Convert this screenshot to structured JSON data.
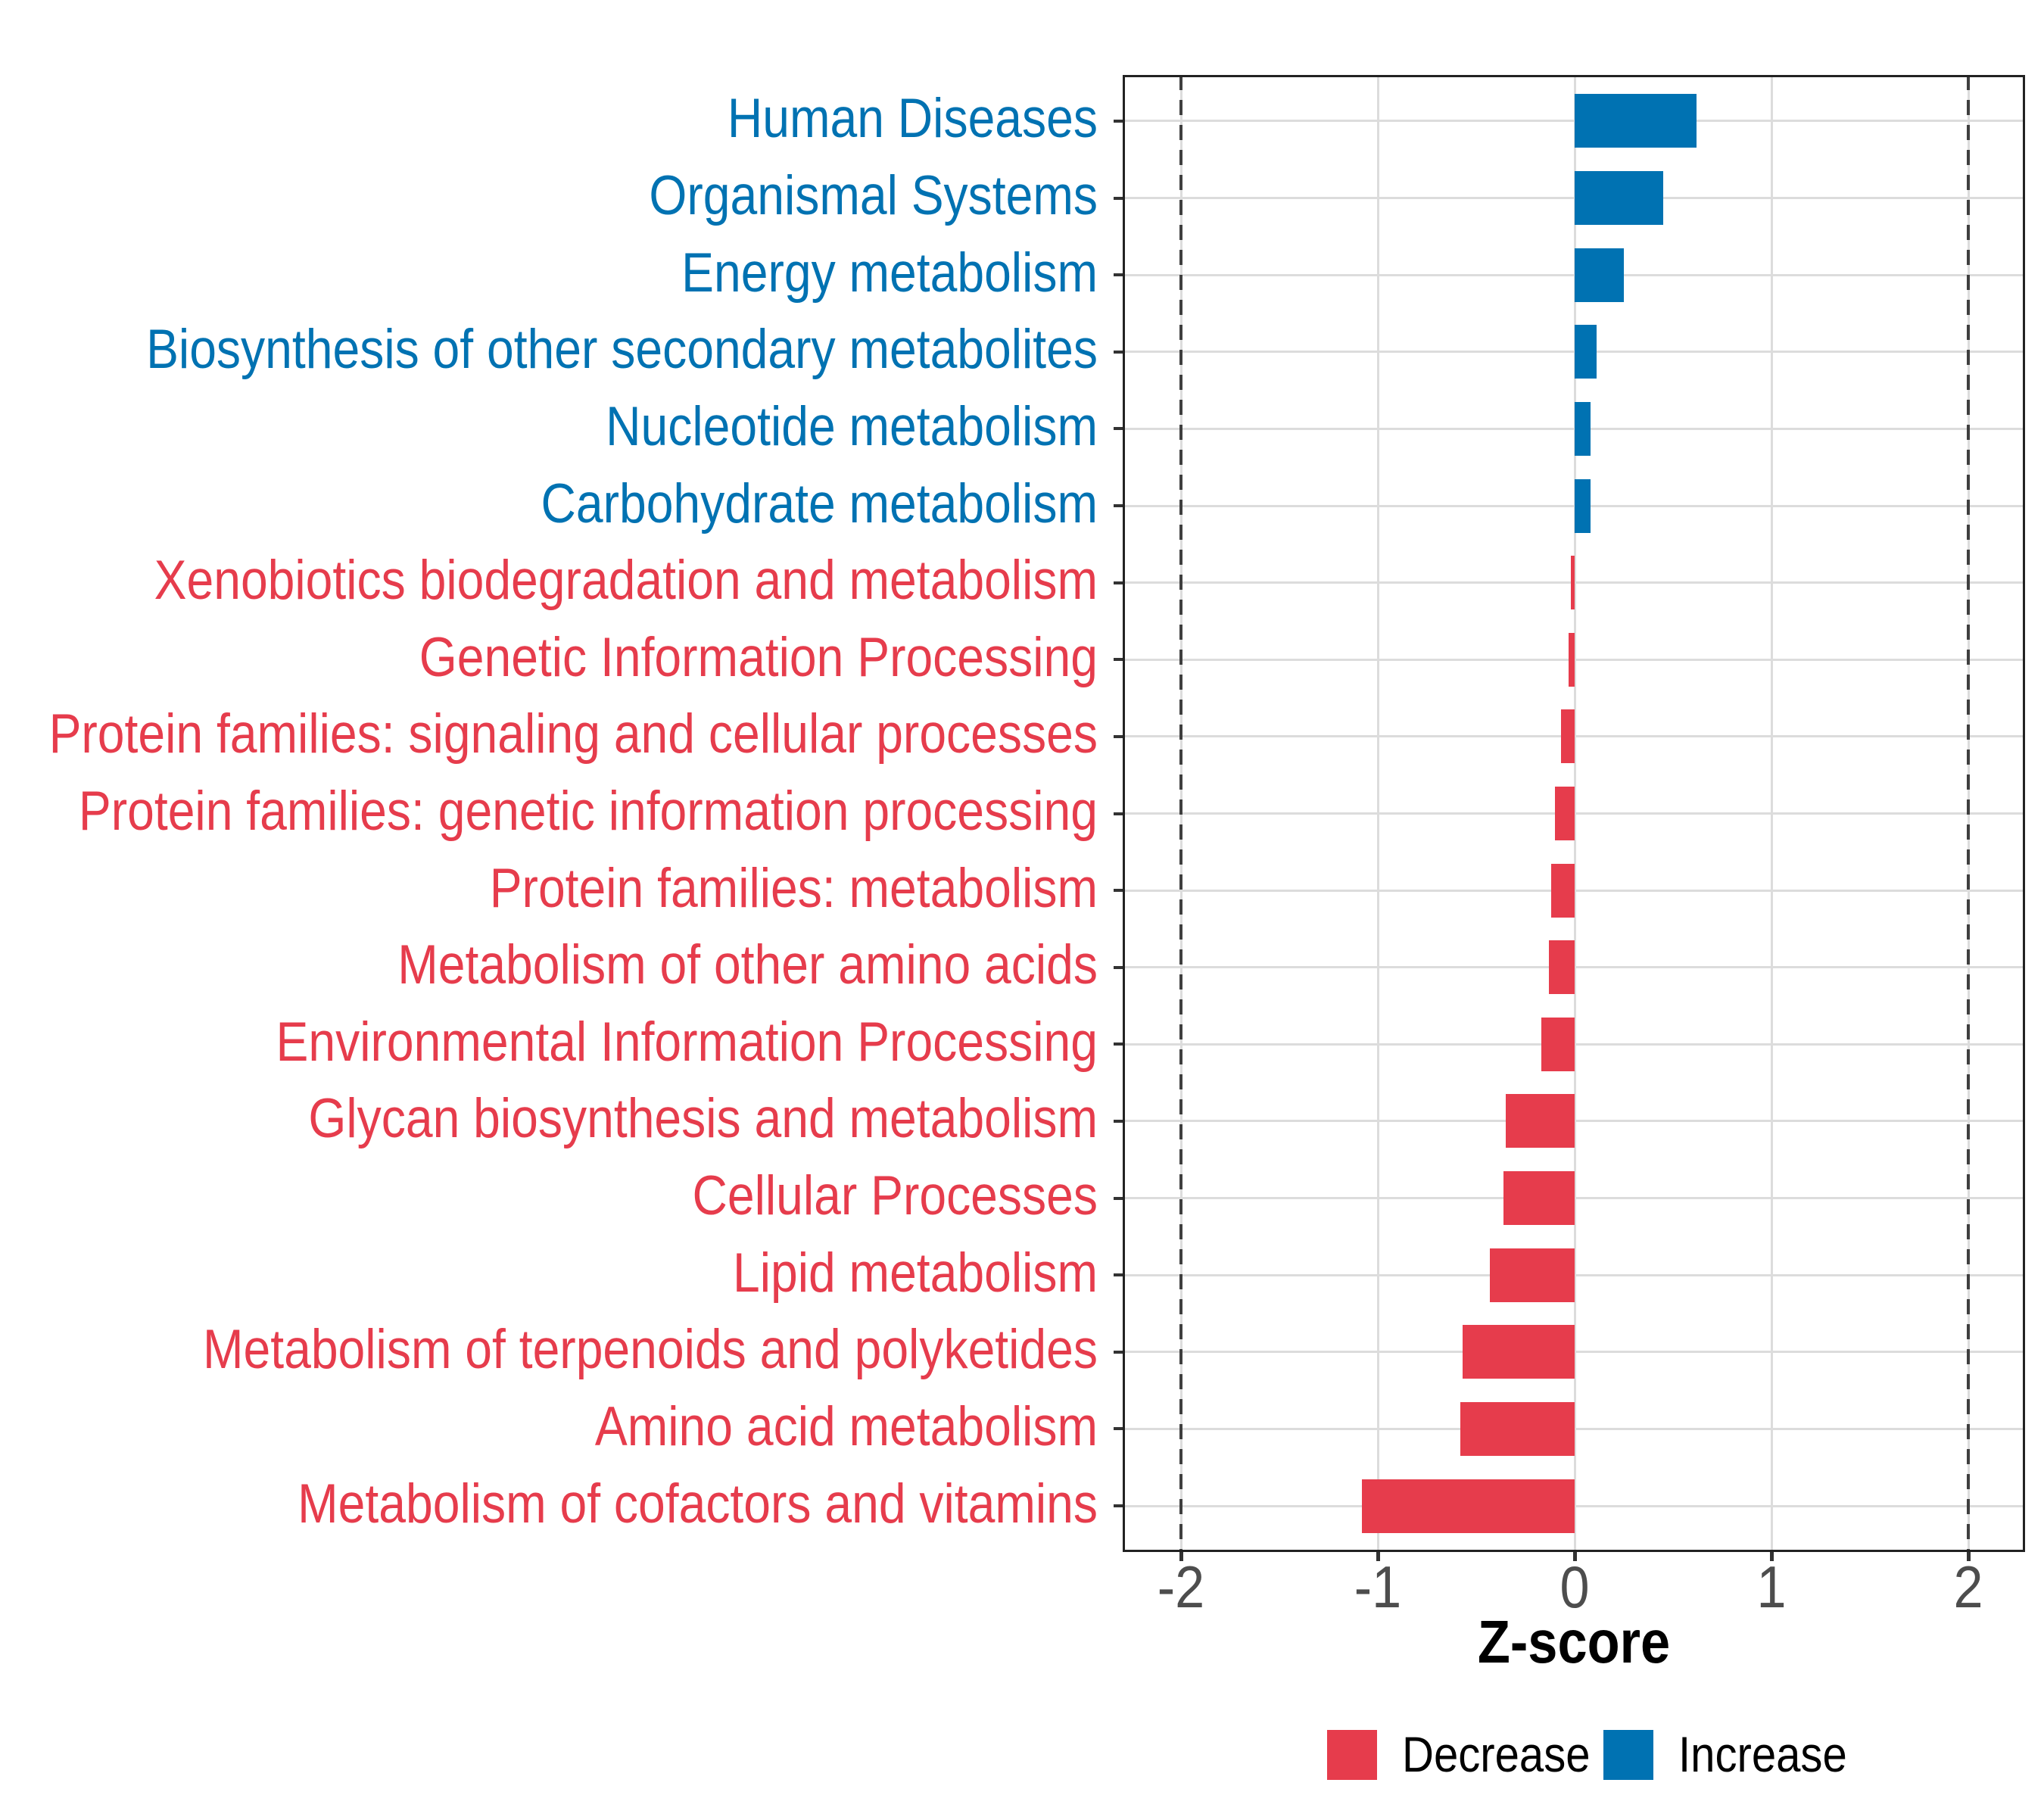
{
  "chart_data": {
    "type": "bar",
    "orientation": "horizontal",
    "xlabel": "Z-score",
    "xlim": [
      -2.3,
      2.3
    ],
    "x_tick_labels": [
      "-2",
      "-1",
      "0",
      "1",
      "2"
    ],
    "x_tick_values": [
      -2,
      -1,
      0,
      1,
      2
    ],
    "dashed_reference_lines": [
      -2,
      2
    ],
    "grid": "major vertical gridlines at integer ticks, horizontal gridline at each category",
    "legend_position": "bottom-center",
    "bars": [
      {
        "label": "Human Diseases",
        "value": 0.62,
        "group": "Increase"
      },
      {
        "label": "Organismal Systems",
        "value": 0.45,
        "group": "Increase"
      },
      {
        "label": "Energy metabolism",
        "value": 0.25,
        "group": "Increase"
      },
      {
        "label": "Biosynthesis of other secondary metabolites",
        "value": 0.11,
        "group": "Increase"
      },
      {
        "label": "Nucleotide metabolism",
        "value": 0.08,
        "group": "Increase"
      },
      {
        "label": "Carbohydrate metabolism",
        "value": 0.08,
        "group": "Increase"
      },
      {
        "label": "Xenobiotics biodegradation and metabolism",
        "value": -0.02,
        "group": "Decrease"
      },
      {
        "label": "Genetic Information Processing",
        "value": -0.03,
        "group": "Decrease"
      },
      {
        "label": "Protein families: signaling and cellular processes",
        "value": -0.07,
        "group": "Decrease"
      },
      {
        "label": "Protein families: genetic information processing",
        "value": -0.1,
        "group": "Decrease"
      },
      {
        "label": "Protein families: metabolism",
        "value": -0.12,
        "group": "Decrease"
      },
      {
        "label": "Metabolism of other amino acids",
        "value": -0.13,
        "group": "Decrease"
      },
      {
        "label": "Environmental Information Processing",
        "value": -0.17,
        "group": "Decrease"
      },
      {
        "label": "Glycan biosynthesis and metabolism",
        "value": -0.35,
        "group": "Decrease"
      },
      {
        "label": "Cellular Processes",
        "value": -0.36,
        "group": "Decrease"
      },
      {
        "label": "Lipid metabolism",
        "value": -0.43,
        "group": "Decrease"
      },
      {
        "label": "Metabolism of terpenoids and polyketides",
        "value": -0.57,
        "group": "Decrease"
      },
      {
        "label": "Amino acid metabolism",
        "value": -0.58,
        "group": "Decrease"
      },
      {
        "label": "Metabolism of cofactors and vitamins",
        "value": -1.08,
        "group": "Decrease"
      }
    ],
    "legend": [
      {
        "label": "Decrease",
        "color": "#E63C4C"
      },
      {
        "label": "Increase",
        "color": "#0072B2"
      }
    ]
  },
  "colors": {
    "increase": "#0072B2",
    "decrease": "#E63C4C",
    "grid": "#DCDCDC",
    "dashed_line": "#3F3F3F",
    "tick": "#333333",
    "axis_text": "#4D4D4D",
    "panel_border": "#222222"
  }
}
